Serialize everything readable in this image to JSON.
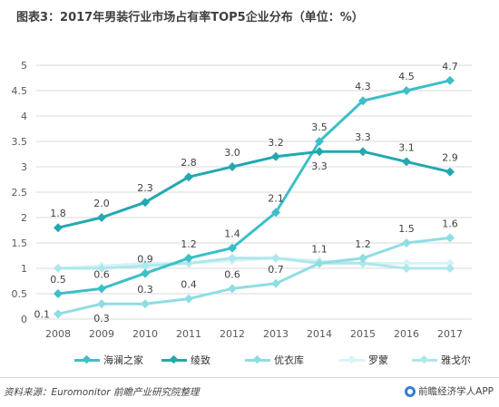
{
  "title": "图表3：2017年男装行业市场占有率TOP5企业分布（单位：%）",
  "footer": {
    "source": "资料来源：Euromonitor  前瞻产业研究院整理",
    "brand": "前瞻经济学人APP"
  },
  "colors": {
    "grid": "#d9d9d9",
    "axis_text": "#595959",
    "label_text": "#404040"
  },
  "chart_data": {
    "type": "line",
    "title": "图表3：2017年男装行业市场占有率TOP5企业分布（单位：%）",
    "xlabel": "",
    "ylabel": "",
    "categories": [
      "2008",
      "2009",
      "2010",
      "2011",
      "2012",
      "2013",
      "2014",
      "2015",
      "2016",
      "2017"
    ],
    "ylim": [
      0,
      5
    ],
    "yticks": [
      0,
      0.5,
      1,
      1.5,
      2,
      2.5,
      3,
      3.5,
      4,
      4.5,
      5
    ],
    "grid": true,
    "legend_position": "bottom",
    "series": [
      {
        "name": "海澜之家",
        "color": "#3cbfc8",
        "marker": "diamond",
        "values": [
          0.5,
          0.6,
          0.9,
          1.2,
          1.4,
          2.1,
          3.5,
          4.3,
          4.5,
          4.7
        ],
        "labels": [
          "0.5",
          "0.6",
          "0.9",
          "1.2",
          "1.4",
          "2.1",
          "3.5",
          "4.3",
          "4.5",
          "4.7"
        ],
        "label_position": [
          "above",
          "above",
          "above",
          "above",
          "above",
          "above",
          "above",
          "above",
          "above",
          "above"
        ]
      },
      {
        "name": "绫致",
        "color": "#23a8b0",
        "marker": "diamond",
        "values": [
          1.8,
          2.0,
          2.3,
          2.8,
          3.0,
          3.2,
          3.3,
          3.3,
          3.1,
          2.9
        ],
        "labels": [
          "1.8",
          "2.0",
          "2.3",
          "2.8",
          "3.0",
          "3.2",
          "3.3",
          "3.3",
          "3.1",
          "2.9"
        ],
        "label_position": [
          "above",
          "above",
          "above",
          "above",
          "above",
          "above",
          "below",
          "above",
          "above",
          "above"
        ]
      },
      {
        "name": "优衣库",
        "color": "#8fdde3",
        "marker": "diamond",
        "values": [
          0.1,
          0.3,
          0.3,
          0.4,
          0.6,
          0.7,
          1.1,
          1.2,
          1.5,
          1.6
        ],
        "labels": [
          "0.1",
          "0.3",
          "0.3",
          "0.4",
          "0.6",
          "0.7",
          "1.1",
          "1.2",
          "1.5",
          "1.6"
        ],
        "label_position": [
          "left",
          "below",
          "above",
          "above",
          "above",
          "above",
          "above",
          "above",
          "above",
          "above"
        ]
      },
      {
        "name": "罗蒙",
        "color": "#d8f3f5",
        "marker": "diamond",
        "values": [
          1.0,
          1.05,
          1.1,
          1.1,
          1.15,
          1.2,
          1.15,
          1.1,
          1.1,
          1.1
        ],
        "labels": [
          "",
          "",
          "",
          "",
          "",
          "",
          "",
          "",
          "",
          ""
        ],
        "label_position": [
          "above",
          "above",
          "above",
          "above",
          "above",
          "above",
          "above",
          "above",
          "above",
          "above"
        ]
      },
      {
        "name": "雅戈尔",
        "color": "#aee7eb",
        "marker": "diamond",
        "values": [
          1.0,
          1.0,
          1.05,
          1.1,
          1.2,
          1.2,
          1.1,
          1.1,
          1.0,
          1.0
        ],
        "labels": [
          "",
          "",
          "",
          "",
          "",
          "",
          "",
          "",
          "",
          ""
        ],
        "label_position": [
          "above",
          "above",
          "above",
          "above",
          "above",
          "above",
          "above",
          "above",
          "above",
          "above"
        ]
      }
    ]
  }
}
